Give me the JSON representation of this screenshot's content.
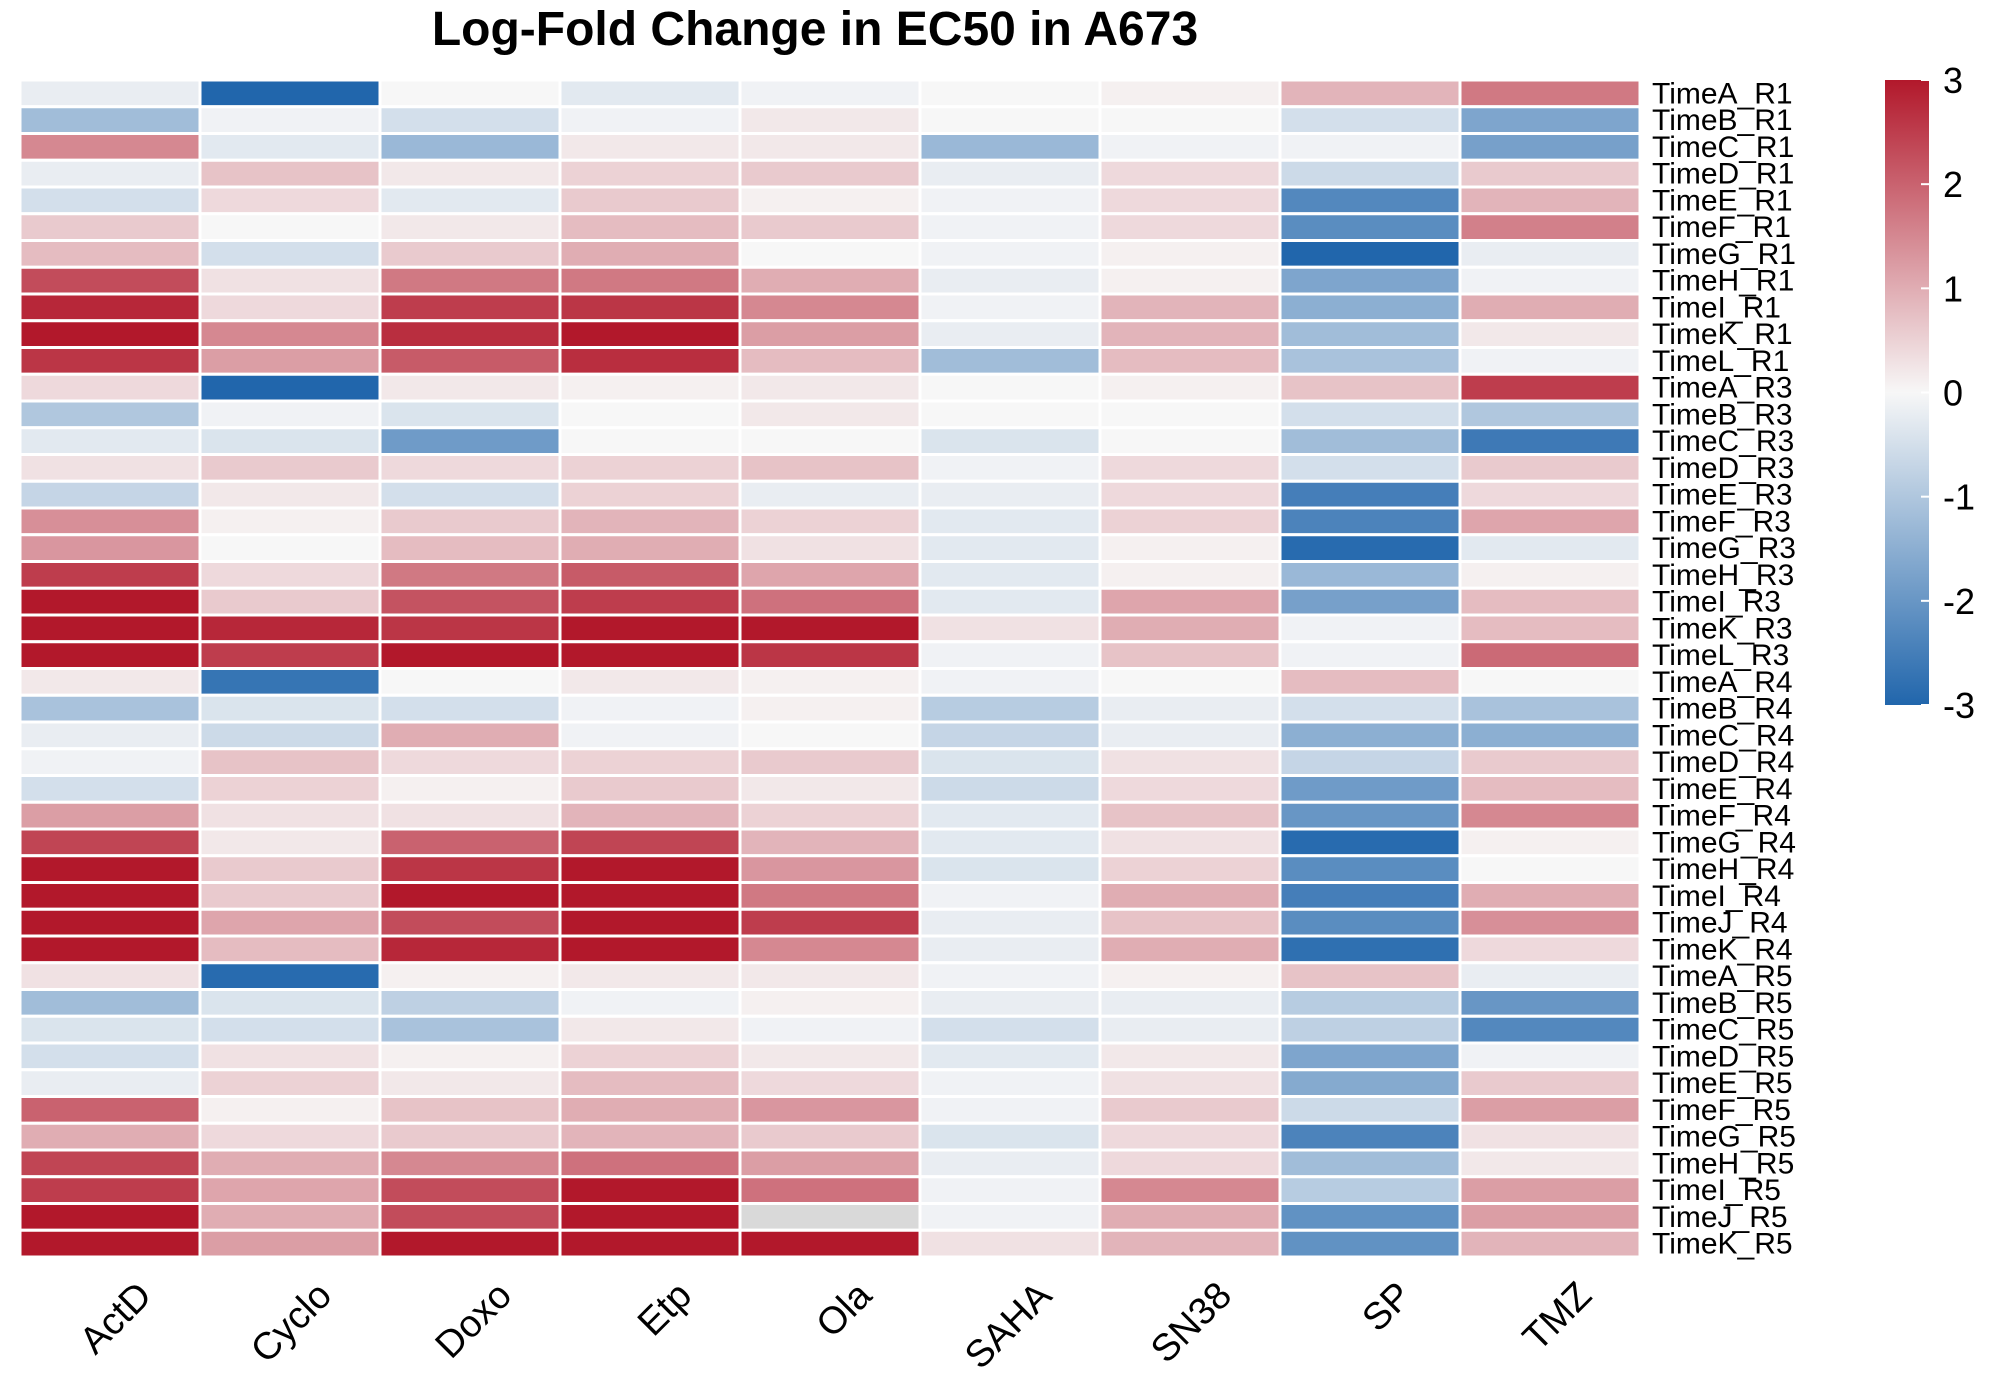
{
  "chart_data": {
    "type": "heatmap",
    "title": "Log-Fold Change in EC50 in A673",
    "columns": [
      "ActD",
      "Cyclo",
      "Doxo",
      "Etp",
      "Ola",
      "SAHA",
      "SN38",
      "SP",
      "TMZ"
    ],
    "rows": [
      "TimeA_R1",
      "TimeB_R1",
      "TimeC_R1",
      "TimeD_R1",
      "TimeE_R1",
      "TimeF_R1",
      "TimeG_R1",
      "TimeH_R1",
      "TimeI_R1",
      "TimeK_R1",
      "TimeL_R1",
      "TimeA_R3",
      "TimeB_R3",
      "TimeC_R3",
      "TimeD_R3",
      "TimeE_R3",
      "TimeF_R3",
      "TimeG_R3",
      "TimeH_R3",
      "TimeI_R3",
      "TimeK_R3",
      "TimeL_R3",
      "TimeA_R4",
      "TimeB_R4",
      "TimeC_R4",
      "TimeD_R4",
      "TimeE_R4",
      "TimeF_R4",
      "TimeG_R4",
      "TimeH_R4",
      "TimeI_R4",
      "TimeJ_R4",
      "TimeK_R4",
      "TimeA_R5",
      "TimeB_R5",
      "TimeC_R5",
      "TimeD_R5",
      "TimeE_R5",
      "TimeF_R5",
      "TimeG_R5",
      "TimeH_R5",
      "TimeI_R5",
      "TimeJ_R5",
      "TimeK_R5"
    ],
    "values": [
      [
        -0.2,
        -3,
        0,
        -0.3,
        -0.1,
        0,
        0.1,
        0.9,
        1.7
      ],
      [
        -1.2,
        -0.1,
        -0.5,
        -0.1,
        0.2,
        0,
        0,
        -0.5,
        -1.7
      ],
      [
        1.5,
        -0.3,
        -1.3,
        0.2,
        0.2,
        -1.3,
        -0.1,
        -0.1,
        -1.8
      ],
      [
        -0.2,
        0.7,
        0.2,
        0.5,
        0.6,
        -0.2,
        0.4,
        -0.6,
        0.6
      ],
      [
        -0.5,
        0.4,
        -0.3,
        0.6,
        0.1,
        -0.1,
        0.4,
        -2.3,
        0.9
      ],
      [
        0.6,
        0,
        0.2,
        0.8,
        0.6,
        -0.1,
        0.4,
        -2.2,
        1.6
      ],
      [
        0.8,
        -0.5,
        0.6,
        1,
        0,
        -0.1,
        0.1,
        -3,
        -0.2
      ],
      [
        2.3,
        0.3,
        1.7,
        1.7,
        1,
        -0.2,
        0.1,
        -1.7,
        -0.1
      ],
      [
        2.8,
        0.4,
        2.5,
        2.6,
        1.5,
        -0.1,
        0.9,
        -1.5,
        1
      ],
      [
        3,
        1.5,
        2.7,
        3,
        1.2,
        -0.2,
        0.9,
        -1.2,
        0.2
      ],
      [
        2.6,
        1.2,
        2.1,
        2.7,
        0.8,
        -1.2,
        0.8,
        -1.1,
        -0.1
      ],
      [
        0.4,
        -3,
        0.2,
        0.1,
        0.2,
        0,
        0.1,
        0.7,
        2.5
      ],
      [
        -1,
        -0.1,
        -0.4,
        0,
        0.2,
        0,
        0,
        -0.5,
        -1
      ],
      [
        -0.3,
        -0.4,
        -1.9,
        0,
        0,
        -0.4,
        0,
        -1.2,
        -2.6
      ],
      [
        0.3,
        0.6,
        0.4,
        0.5,
        0.7,
        -0.1,
        0.4,
        -0.5,
        0.6
      ],
      [
        -0.7,
        0.2,
        -0.5,
        0.5,
        -0.2,
        -0.2,
        0.4,
        -2.5,
        0.4
      ],
      [
        1.4,
        0.1,
        0.6,
        0.9,
        0.5,
        -0.3,
        0.5,
        -2.4,
        1.1
      ],
      [
        1.3,
        0,
        0.8,
        1,
        0.3,
        -0.3,
        0.1,
        -2.9,
        -0.3
      ],
      [
        2.5,
        0.4,
        1.7,
        2.1,
        1.1,
        -0.3,
        0.1,
        -1.3,
        0.1
      ],
      [
        3,
        0.6,
        2.2,
        2.5,
        1.8,
        -0.3,
        1.1,
        -1.8,
        0.8
      ],
      [
        3,
        2.8,
        2.6,
        3,
        3,
        0.3,
        1,
        -0.1,
        0.8
      ],
      [
        3,
        2.5,
        3,
        3,
        2.6,
        -0.1,
        0.7,
        -0.1,
        1.9
      ],
      [
        0.2,
        -2.7,
        0,
        0.2,
        0.1,
        -0.1,
        0,
        0.8,
        0
      ],
      [
        -1.1,
        -0.4,
        -0.5,
        -0.1,
        0.1,
        -0.9,
        -0.2,
        -0.5,
        -1.1
      ],
      [
        -0.2,
        -0.6,
        1,
        -0.1,
        0,
        -0.7,
        -0.2,
        -1.5,
        -1.5
      ],
      [
        -0.1,
        0.7,
        0.4,
        0.5,
        0.6,
        -0.4,
        0.3,
        -0.7,
        0.6
      ],
      [
        -0.5,
        0.5,
        0.1,
        0.6,
        0.2,
        -0.6,
        0.4,
        -1.9,
        0.8
      ],
      [
        1.2,
        0.3,
        0.3,
        0.9,
        0.5,
        -0.3,
        0.7,
        -2,
        1.5
      ],
      [
        2.4,
        0.2,
        2,
        2.4,
        0.9,
        -0.3,
        0.3,
        -2.9,
        0.1
      ],
      [
        3,
        0.6,
        2.6,
        3,
        1.3,
        -0.4,
        0.5,
        -2.2,
        0
      ],
      [
        3,
        0.6,
        3,
        3,
        1.7,
        -0.1,
        1,
        -2.5,
        1
      ],
      [
        3,
        1.1,
        2.3,
        3,
        2.5,
        -0.2,
        0.7,
        -2.2,
        1.4
      ],
      [
        3,
        0.8,
        2.8,
        3,
        1.5,
        -0.2,
        1,
        -2.8,
        0.4
      ],
      [
        0.3,
        -2.9,
        0.1,
        0.2,
        0.2,
        -0.1,
        0.1,
        0.7,
        -0.2
      ],
      [
        -1.2,
        -0.4,
        -0.8,
        -0.1,
        0.1,
        -0.2,
        -0.2,
        -0.9,
        -2
      ],
      [
        -0.4,
        -0.5,
        -1.1,
        0.2,
        -0.1,
        -0.5,
        -0.2,
        -0.8,
        -2.3
      ],
      [
        -0.5,
        0.3,
        0.1,
        0.5,
        0.2,
        -0.3,
        0.2,
        -1.7,
        -0.1
      ],
      [
        -0.2,
        0.5,
        0.2,
        0.8,
        0.4,
        -0.1,
        0.3,
        -1.6,
        0.6
      ],
      [
        2,
        0.1,
        0.7,
        1,
        1.3,
        -0.1,
        0.6,
        -0.6,
        1.2
      ],
      [
        1,
        0.4,
        0.6,
        0.9,
        0.6,
        -0.4,
        0.4,
        -2.4,
        0.3
      ],
      [
        2.4,
        1,
        1.5,
        1.8,
        1.2,
        -0.2,
        0.4,
        -1.2,
        0.2
      ],
      [
        2.5,
        1.1,
        2.3,
        3,
        1.8,
        -0.1,
        1.5,
        -0.9,
        1.2
      ],
      [
        3,
        1,
        2.3,
        3,
        null,
        -0.1,
        1,
        -2.1,
        1.2
      ],
      [
        3,
        1.2,
        3,
        3,
        3,
        0.3,
        0.9,
        -2.1,
        0.9
      ]
    ],
    "color_scale": {
      "min": -3,
      "max": 3,
      "low_color": "#2166AC",
      "mid_color": "#F7F7F7",
      "high_color": "#B2182B",
      "na_color": "#D9D9D9",
      "ticks": [
        "3",
        "2",
        "1",
        "0",
        "-1",
        "-2",
        "-3"
      ]
    },
    "legend_placement": "right"
  }
}
